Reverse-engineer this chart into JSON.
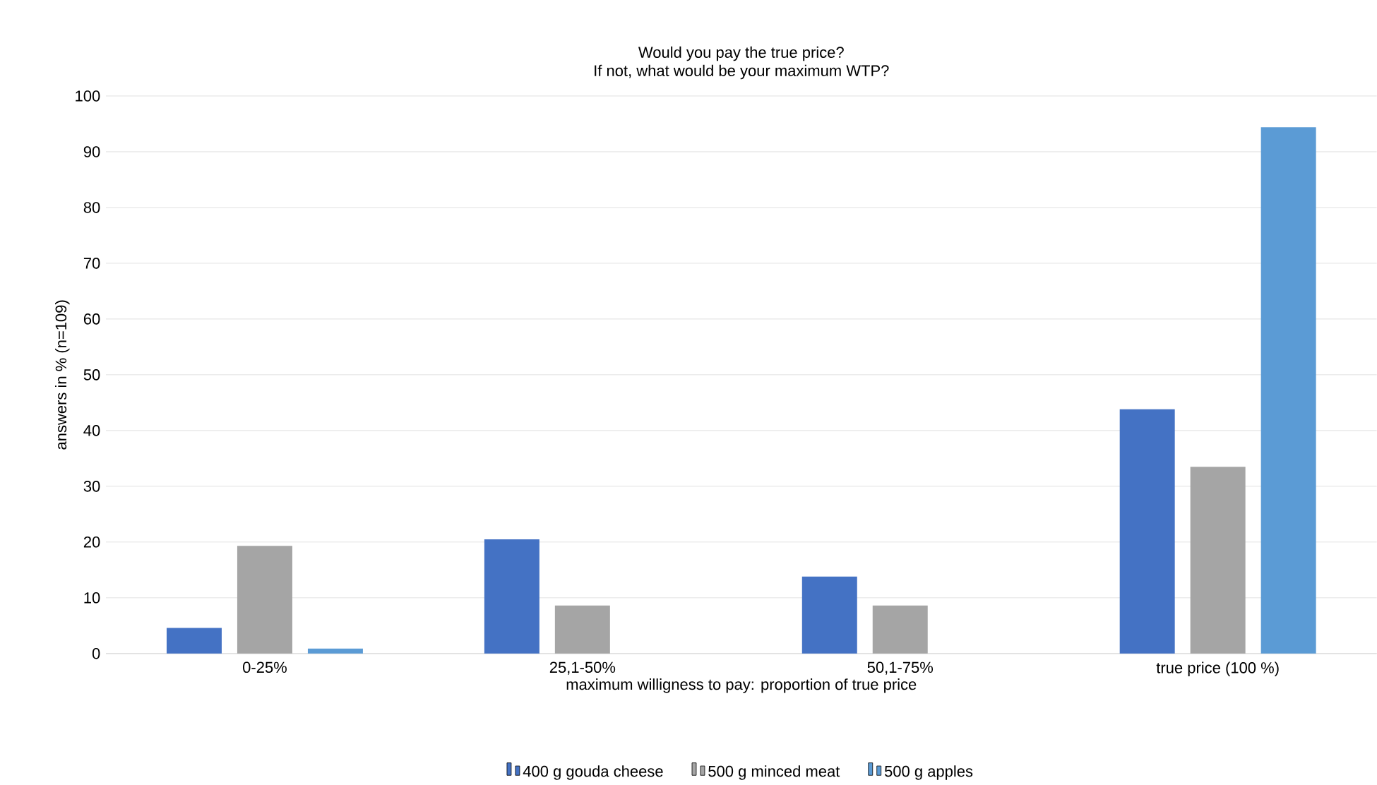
{
  "chart_data": {
    "type": "bar",
    "title": "Would you pay the true price?",
    "subtitle": "If not, what would be your maximum WTP?",
    "xlabel": "maximum willigness to pay: proportion of true price",
    "ylabel": "answers in % (n=109)",
    "categories": [
      "0-25%",
      "25,1-50%",
      "50,1-75%",
      "true price (100 %)"
    ],
    "series": [
      {
        "name": "400 g gouda cheese",
        "color": "#4472c4",
        "values": [
          4.6,
          20.5,
          13.8,
          43.8
        ]
      },
      {
        "name": "500 g minced meat",
        "color": "#a5a5a5",
        "values": [
          19.3,
          8.6,
          8.6,
          33.5
        ]
      },
      {
        "name": "500 g apples",
        "color": "#5b9bd5",
        "values": [
          0.9,
          0,
          0,
          94.4
        ]
      }
    ],
    "ylim": [
      0,
      100
    ],
    "yticks": [
      0,
      10,
      20,
      30,
      40,
      50,
      60,
      70,
      80,
      90,
      100
    ],
    "grid": "y",
    "legend": "bottom"
  }
}
